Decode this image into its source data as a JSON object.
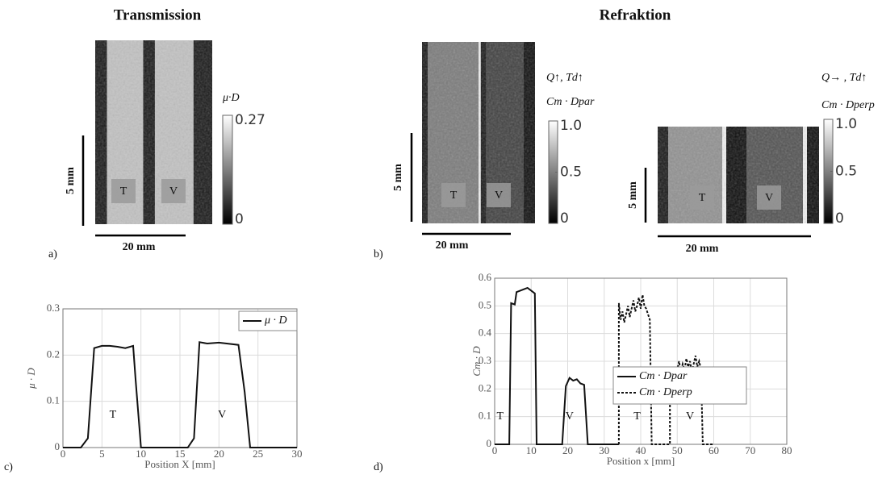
{
  "figure": {
    "headings": [
      "Transmission",
      "Refraktion"
    ],
    "panel_labels": [
      "a)",
      "b)",
      "c)",
      "d)"
    ],
    "image_panels": [
      {
        "colorbar_label": "μ·D",
        "colorbar_lim": [
          0,
          0.27
        ],
        "colorbar_ticks": [
          0.27,
          0
        ],
        "scale_vertical": "5 mm",
        "scale_horizontal": "20 mm",
        "regions": [
          "T",
          "V"
        ]
      },
      {
        "condition": "Q↑, Td↑",
        "colorbar_label": "Cm · Dpar",
        "colorbar_lim": [
          0,
          1
        ],
        "colorbar_ticks": [
          {
            "value": 1,
            "label": "1.0"
          },
          0.5,
          0
        ],
        "scale_vertical": "5 mm",
        "scale_horizontal": "20 mm",
        "regions": [
          "T",
          "V"
        ]
      },
      {
        "condition": "Q→ , Td↑",
        "colorbar_label": "Cm · Dperp",
        "colorbar_lim": [
          0,
          1
        ],
        "colorbar_ticks": [
          {
            "value": 1,
            "label": "1.0"
          },
          0.5,
          0
        ],
        "scale_vertical": "5 mm",
        "scale_horizontal": "20 mm",
        "regions": [
          "T",
          "V"
        ]
      }
    ]
  },
  "chart_data": [
    {
      "type": "line",
      "x_label": "Position X [mm]",
      "y_label": "μ · D",
      "xlim": [
        0,
        30
      ],
      "xticks": [
        0,
        5,
        10,
        15,
        20,
        25,
        30
      ],
      "ylim": [
        0,
        0.3
      ],
      "yticks": [
        0,
        0.1,
        0.2,
        0.3
      ],
      "grid": true,
      "legend": "upper right",
      "annotations": [
        "T",
        "V"
      ],
      "series": [
        {
          "name": "μ · D",
          "color": "#111111",
          "style": "solid",
          "x": [
            0,
            2.3,
            3.2,
            4,
            5,
            6,
            7,
            8,
            9,
            9.3,
            10,
            16,
            16.8,
            17.5,
            18.5,
            20,
            21,
            22.5,
            23.3,
            24,
            30
          ],
          "values": [
            0,
            0,
            0.02,
            0.215,
            0.22,
            0.22,
            0.218,
            0.215,
            0.22,
            0.15,
            0,
            0,
            0.02,
            0.228,
            0.225,
            0.227,
            0.225,
            0.222,
            0.12,
            0,
            0
          ]
        }
      ]
    },
    {
      "type": "line",
      "x_label": "Position x [mm]",
      "y_label": "Cm · D",
      "xlim": [
        0,
        80
      ],
      "xticks": [
        0,
        10,
        20,
        30,
        40,
        50,
        60,
        70,
        80
      ],
      "ylim": [
        0,
        0.6
      ],
      "yticks": [
        0,
        0.1,
        0.2,
        0.3,
        0.4,
        0.5,
        0.6
      ],
      "grid": true,
      "legend": "upper right",
      "annotations": [
        "T",
        "V",
        "T",
        "V"
      ],
      "series": [
        {
          "name": "Cm · Dpar",
          "color": "#111111",
          "style": "solid",
          "x": [
            0,
            4,
            4.5,
            5.5,
            6,
            7,
            8,
            9,
            10,
            11,
            11.5,
            18.5,
            19.5,
            20.5,
            21.5,
            22.5,
            23.5,
            24.5,
            25.5,
            34
          ],
          "values": [
            0,
            0,
            0.51,
            0.505,
            0.55,
            0.555,
            0.56,
            0.565,
            0.555,
            0.545,
            0,
            0,
            0.21,
            0.24,
            0.23,
            0.235,
            0.22,
            0.215,
            0,
            0
          ]
        },
        {
          "name": "Cm · Dperp",
          "color": "#111111",
          "style": "dotted",
          "x": [
            34,
            34,
            34.5,
            35,
            35.5,
            36,
            36.5,
            37,
            37.5,
            38,
            38.5,
            39,
            39.5,
            40,
            40.5,
            41,
            41.5,
            42,
            42.5,
            43,
            48,
            48,
            48.5,
            49,
            49.5,
            50,
            50.5,
            51,
            51.5,
            52,
            52.5,
            53,
            53.5,
            54,
            54.5,
            55,
            55.5,
            56,
            56.5,
            57,
            60
          ],
          "values": [
            0,
            0.51,
            0.45,
            0.48,
            0.44,
            0.47,
            0.5,
            0.46,
            0.49,
            0.52,
            0.48,
            0.5,
            0.53,
            0.49,
            0.54,
            0.5,
            0.49,
            0.47,
            0.45,
            0,
            0,
            0.23,
            0.26,
            0.25,
            0.28,
            0.27,
            0.3,
            0.26,
            0.29,
            0.27,
            0.31,
            0.28,
            0.3,
            0.26,
            0.29,
            0.32,
            0.28,
            0.3,
            0.27,
            0,
            0
          ]
        }
      ]
    }
  ]
}
